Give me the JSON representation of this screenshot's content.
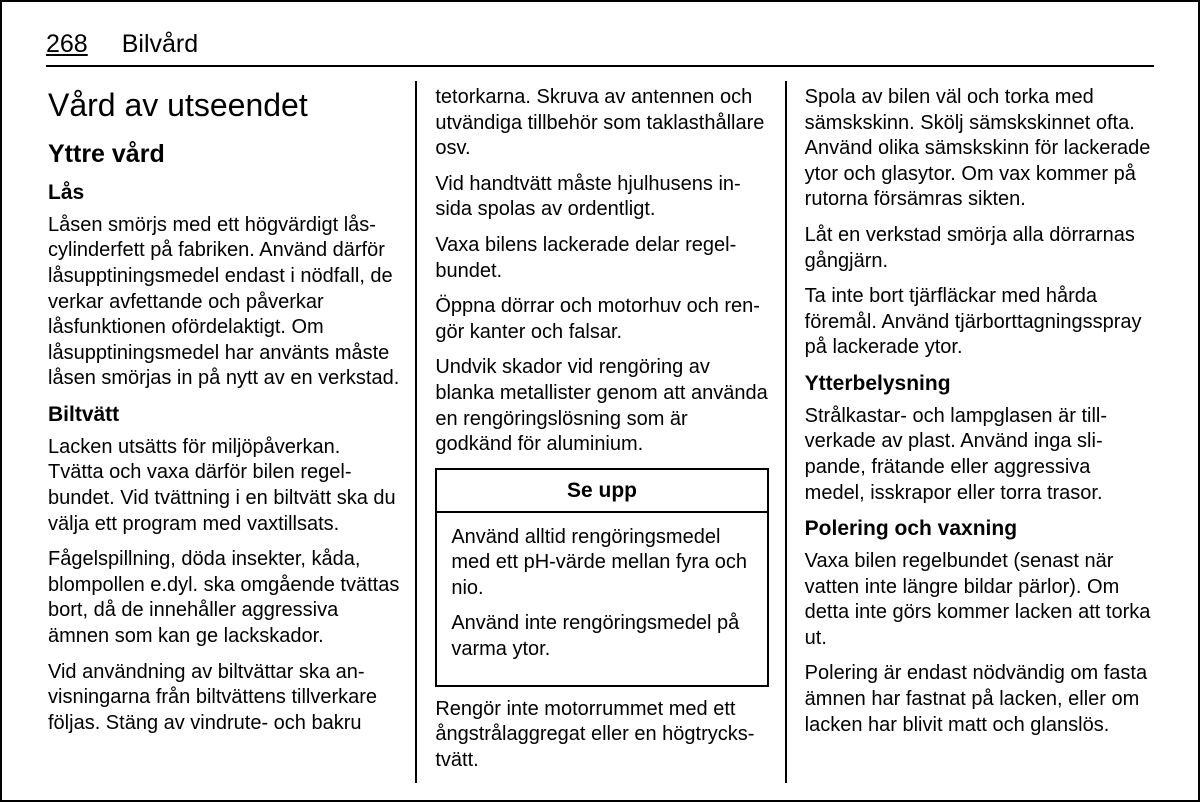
{
  "header": {
    "page_number": "268",
    "chapter": "Bilvård"
  },
  "col1": {
    "title": "Vård av utseendet",
    "h2": "Yttre vård",
    "h3a": "Lås",
    "p1": "Låsen smörjs med ett högvärdigt lås­cylinderfett på fabriken. Använd där­för låsupptiningsmedel endast i nöd­fall, de verkar avfettande och påver­kar låsfunktionen ofördelaktigt. Om låsupptiningsmedel har använts måste låsen smörjas in på nytt av en verkstad.",
    "h3b": "Biltvätt",
    "p2": "Lacken utsätts för miljöpåverkan. Tvätta och vaxa därför bilen regel­bundet. Vid tvättning i en biltvätt ska du välja ett program med vaxtillsats.",
    "p3": "Fågelspillning, döda insekter, kåda, blompollen e.dyl. ska omgående tvät­tas bort, då de innehåller aggressiva ämnen som kan ge lackskador.",
    "p4": "Vid användning av biltvättar ska an­visningarna från biltvättens tillverkare följas. Stäng av vindrute- och bakru­"
  },
  "col2": {
    "p1": "tetorkarna. Skruva av antennen och utvändiga tillbehör som taklasthållare osv.",
    "p2": "Vid handtvätt måste hjulhusens in­sida spolas av ordentligt.",
    "p3": "Vaxa bilens lackerade delar regel­bundet.",
    "p4": "Öppna dörrar och motorhuv och ren­gör kanter och falsar.",
    "p5": "Undvik skador vid rengöring av blanka metallister genom att använda en rengöringslösning som är godkänd för aluminium.",
    "callout": {
      "title": "Se upp",
      "p1": "Använd alltid rengöringsmedel med ett pH-värde mellan fyra och nio.",
      "p2": "Använd inte rengöringsmedel på varma ytor."
    },
    "p6": "Rengör inte motorrummet med ett ångstrålaggregat eller en högtrycks­tvätt."
  },
  "col3": {
    "p1": "Spola av bilen väl och torka med sämskskinn. Skölj sämskskinnet ofta. Använd olika sämskskinn för lacke­rade ytor och glasytor. Om vax kommer på rutorna försämras sikten.",
    "p2": "Låt en verkstad smörja alla dörrarnas gångjärn.",
    "p3": "Ta inte bort tjärfläckar med hårda föremål. Använd tjärborttagnings­spray på lackerade ytor.",
    "h3a": "Ytterbelysning",
    "p4": "Strålkastar- och lampglasen är till­verkade av plast. Använd inga sli­pande, frätande eller aggressiva medel, isskrapor eller torra trasor.",
    "h3b": "Polering och vaxning",
    "p5": "Vaxa bilen regelbundet (senast när vatten inte längre bildar pärlor). Om detta inte görs kommer lacken att torka ut.",
    "p6": "Polering är endast nödvändig om fasta ämnen har fastnat på lacken, eller om lacken har blivit matt och glanslös."
  }
}
